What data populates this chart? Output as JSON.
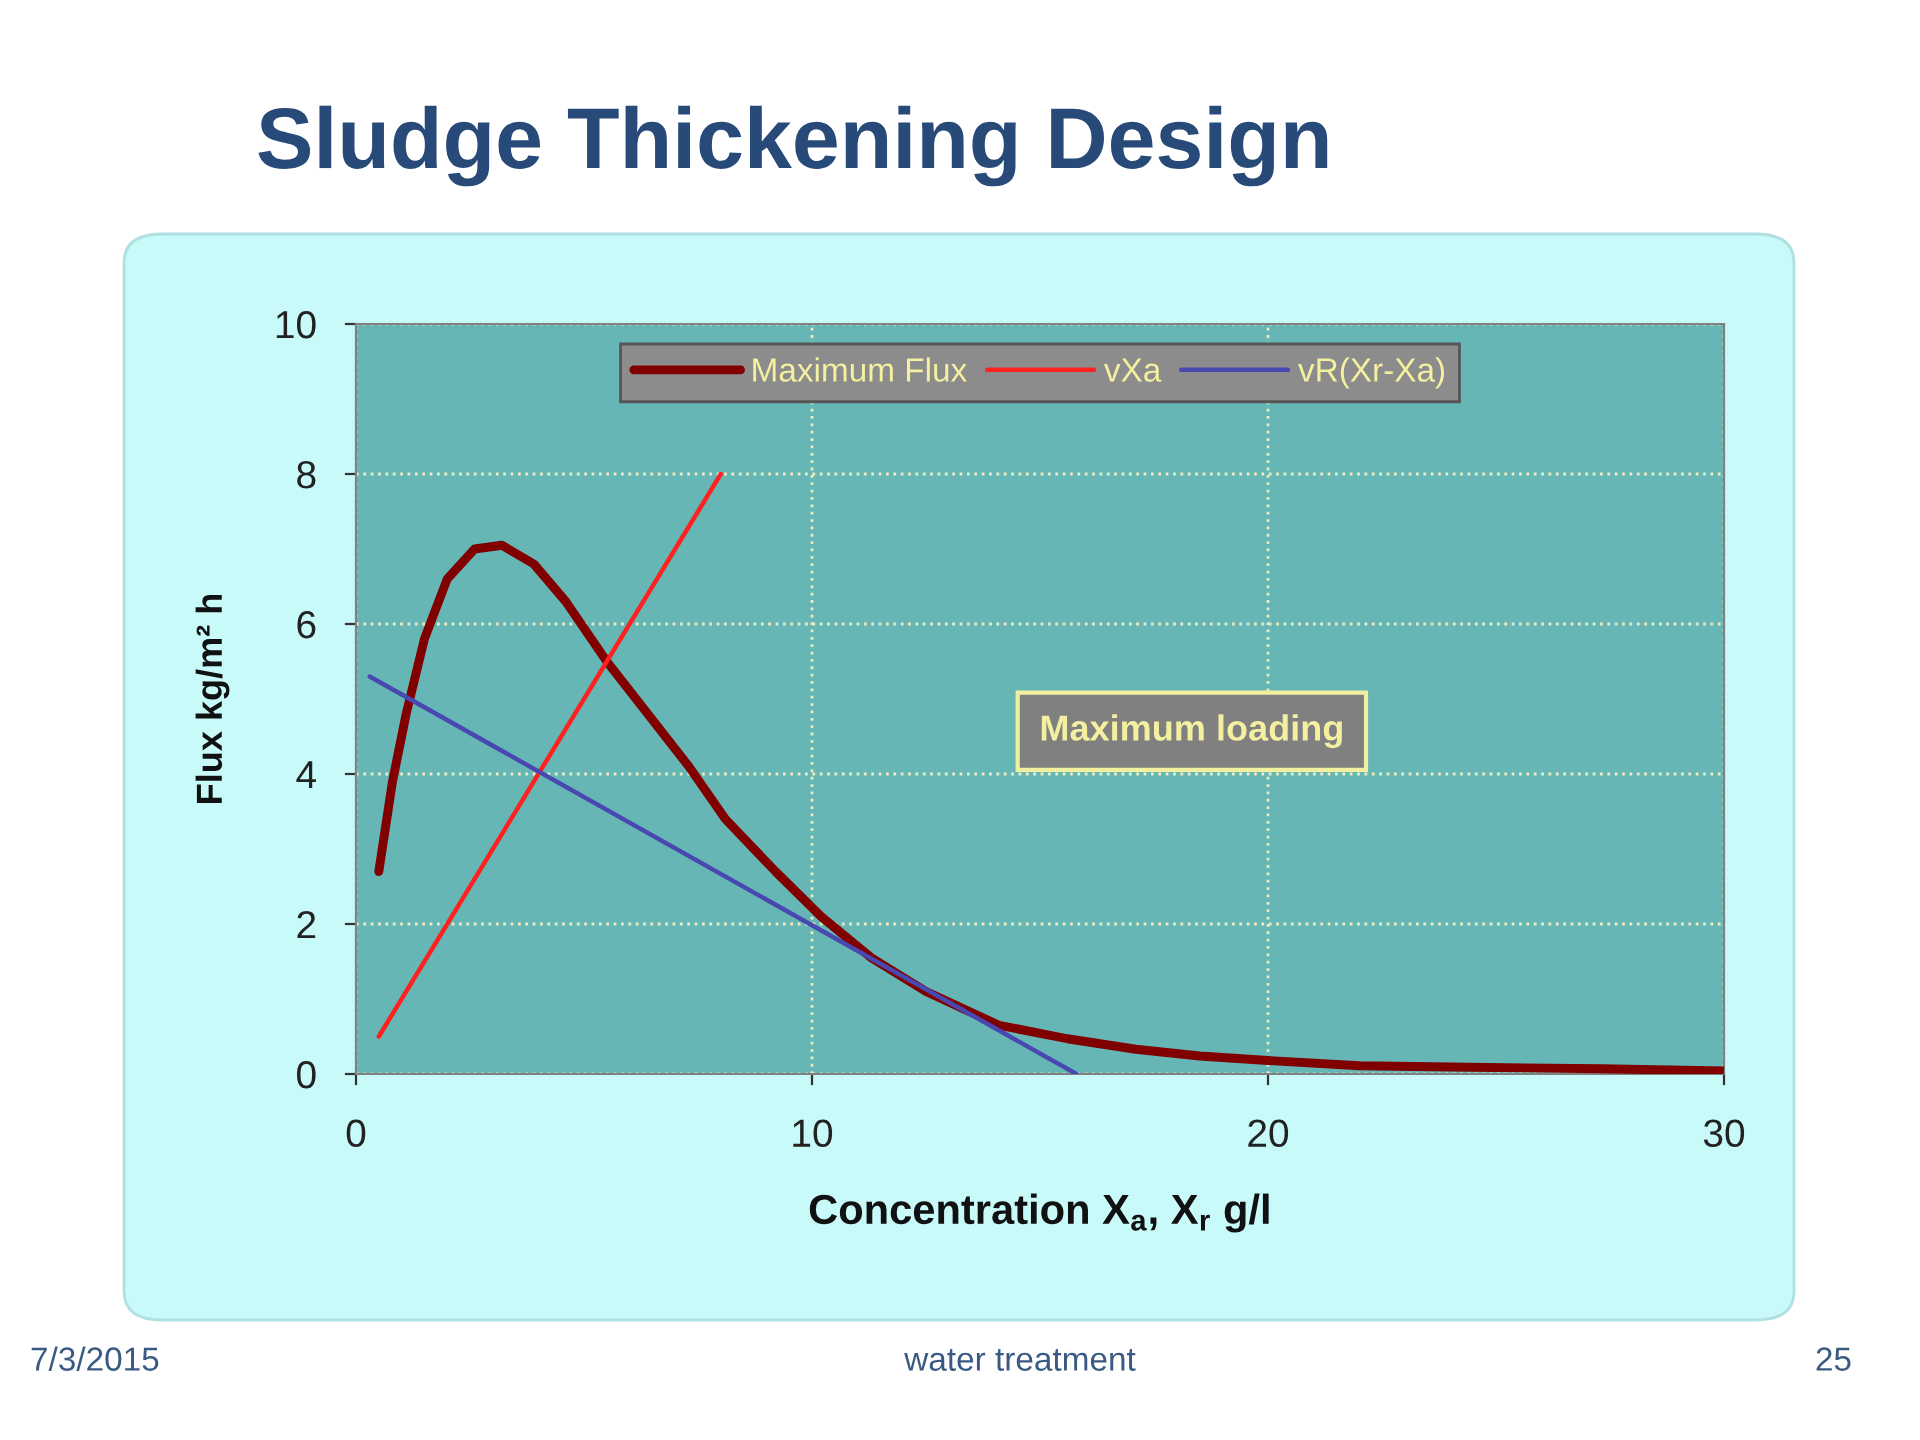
{
  "chart_data": {
    "type": "line",
    "title": "Sludge Thickening Design",
    "xlabel": "Concentration X$_{a}$, X$_{r}$ g/l",
    "ylabel": "Flux kg/m² h",
    "xlim": [
      0,
      30
    ],
    "ylim": [
      0,
      10
    ],
    "xticks": [
      0,
      10,
      20,
      30
    ],
    "yticks": [
      0,
      2,
      4,
      6,
      8,
      10
    ],
    "grid": true,
    "legend": "top",
    "marker": "none",
    "line_style": "solid",
    "series": [
      {
        "name": "Maximum Flux",
        "color": "#800000",
        "x": [
          0.5,
          0.8,
          1.1,
          1.5,
          2.0,
          2.6,
          3.2,
          3.9,
          4.6,
          5.5,
          6.4,
          7.3,
          8.1,
          9.2,
          10.2,
          11.3,
          12.5,
          14.1,
          15.6,
          17.1,
          18.5,
          20,
          22,
          24.4,
          27.3,
          30
        ],
        "values": [
          2.7,
          3.9,
          4.8,
          5.8,
          6.6,
          7.0,
          7.05,
          6.8,
          6.3,
          5.5,
          4.8,
          4.1,
          3.4,
          2.7,
          2.1,
          1.55,
          1.1,
          0.65,
          0.47,
          0.33,
          0.24,
          0.18,
          0.11,
          0.09,
          0.07,
          0.04
        ]
      },
      {
        "name": "vXa",
        "color": "#ff2020",
        "x": [
          0.5,
          8
        ],
        "values": [
          0.5,
          8
        ]
      },
      {
        "name": "vR(Xr-Xa)",
        "color": "#4848b0",
        "x": [
          0.3,
          15.8
        ],
        "values": [
          5.3,
          0
        ]
      }
    ],
    "annotations": [
      "Maximum loading",
      "7/3/2015",
      "water treatment",
      "25"
    ]
  }
}
